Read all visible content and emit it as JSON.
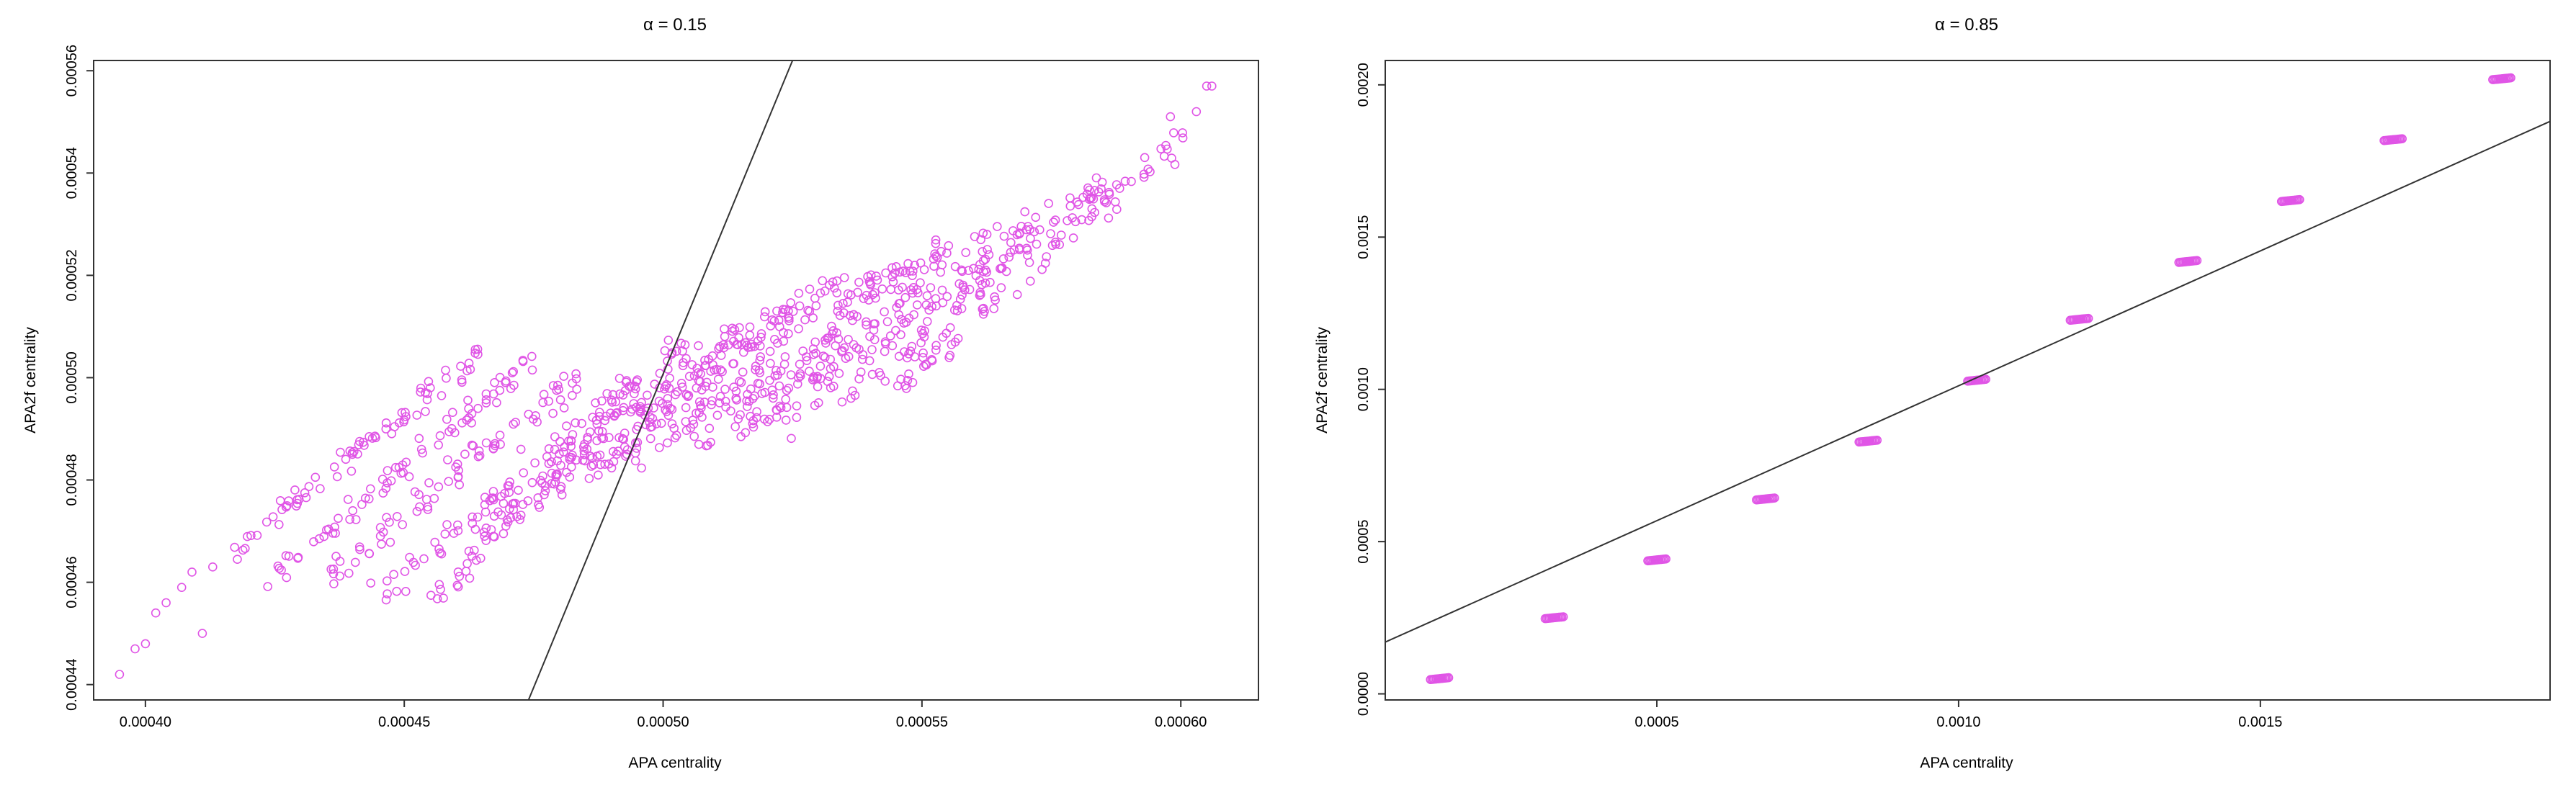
{
  "chart_data": [
    {
      "type": "scatter",
      "title": "α = 0.15",
      "xlabel": "APA centrality",
      "ylabel": "APA2f centrality",
      "xlim": [
        0.00039,
        0.000615
      ],
      "ylim": [
        0.000437,
        0.000562
      ],
      "xticks": [
        0.0004,
        0.00045,
        0.0005,
        0.00055,
        0.0006
      ],
      "xtick_labels": [
        "0.00040",
        "0.00045",
        "0.00050",
        "0.00055",
        "0.00060"
      ],
      "yticks": [
        0.00044,
        0.00046,
        0.00048,
        0.0005,
        0.00052,
        0.00054,
        0.00056
      ],
      "ytick_labels": [
        "0.00044",
        "0.00046",
        "0.00048",
        "0.00050",
        "0.00052",
        "0.00054",
        "0.00056"
      ],
      "reference_line": {
        "x": [
          0.000474,
          0.000525
        ],
        "y": [
          0.000437,
          0.000562
        ]
      },
      "point_color": "#e055e6",
      "marker": "open-circle",
      "point_bands": [
        {
          "x": [
            0.000415,
            0.000465
          ],
          "y": [
            0.000465,
            0.000505
          ]
        },
        {
          "x": [
            0.000425,
            0.000475
          ],
          "y": [
            0.000462,
            0.000503
          ]
        },
        {
          "x": [
            0.000435,
            0.000485
          ],
          "y": [
            0.00046,
            0.000501
          ]
        },
        {
          "x": [
            0.000445,
            0.000495
          ],
          "y": [
            0.000458,
            0.0005
          ]
        },
        {
          "x": [
            0.000455,
            0.000505
          ],
          "y": [
            0.000456,
            0.000508
          ]
        },
        {
          "x": [
            0.000465,
            0.000515
          ],
          "y": [
            0.00047,
            0.00051
          ]
        },
        {
          "x": [
            0.000475,
            0.000525
          ],
          "y": [
            0.000475,
            0.000515
          ]
        },
        {
          "x": [
            0.000485,
            0.000535
          ],
          "y": [
            0.00048,
            0.00052
          ]
        },
        {
          "x": [
            0.000495,
            0.000545
          ],
          "y": [
            0.000483,
            0.000522
          ]
        },
        {
          "x": [
            0.000505,
            0.000555
          ],
          "y": [
            0.000486,
            0.000526
          ]
        },
        {
          "x": [
            0.000515,
            0.000565
          ],
          "y": [
            0.000489,
            0.00053
          ]
        },
        {
          "x": [
            0.000525,
            0.000575
          ],
          "y": [
            0.000492,
            0.000534
          ]
        },
        {
          "x": [
            0.000535,
            0.000585
          ],
          "y": [
            0.000495,
            0.000538
          ]
        },
        {
          "x": [
            0.000545,
            0.0006
          ],
          "y": [
            0.000498,
            0.000547
          ]
        }
      ],
      "outlier_points": [
        {
          "x": 0.000395,
          "y": 0.000442
        },
        {
          "x": 0.000398,
          "y": 0.000447
        },
        {
          "x": 0.0004,
          "y": 0.000448
        },
        {
          "x": 0.000402,
          "y": 0.000454
        },
        {
          "x": 0.000404,
          "y": 0.000456
        },
        {
          "x": 0.000407,
          "y": 0.000459
        },
        {
          "x": 0.000409,
          "y": 0.000462
        },
        {
          "x": 0.000411,
          "y": 0.00045
        },
        {
          "x": 0.000413,
          "y": 0.000463
        },
        {
          "x": 0.000603,
          "y": 0.000552
        },
        {
          "x": 0.000605,
          "y": 0.000557
        },
        {
          "x": 0.000606,
          "y": 0.000557
        },
        {
          "x": 0.000598,
          "y": 0.000551
        }
      ]
    },
    {
      "type": "scatter",
      "title": "α = 0.85",
      "xlabel": "APA centrality",
      "ylabel": "APA2f centrality",
      "xlim": [
        5e-05,
        0.00198
      ],
      "ylim": [
        -2e-05,
        0.00208
      ],
      "xticks": [
        0.0005,
        0.001,
        0.0015
      ],
      "xtick_labels": [
        "0.0005",
        "0.0010",
        "0.0015"
      ],
      "yticks": [
        0.0,
        0.0005,
        0.001,
        0.0015,
        0.002
      ],
      "ytick_labels": [
        "0.0000",
        "0.0005",
        "0.0010",
        "0.0015",
        "0.0020"
      ],
      "reference_line": {
        "x": [
          5e-05,
          0.00198
        ],
        "y": [
          0.00017,
          0.00188
        ]
      },
      "point_color": "#e055e6",
      "marker": "open-circle",
      "clusters": [
        {
          "x": 0.00014,
          "y": 5e-05
        },
        {
          "x": 0.00033,
          "y": 0.00025
        },
        {
          "x": 0.0005,
          "y": 0.00044
        },
        {
          "x": 0.00068,
          "y": 0.00064
        },
        {
          "x": 0.00085,
          "y": 0.00083
        },
        {
          "x": 0.00103,
          "y": 0.00103
        },
        {
          "x": 0.0012,
          "y": 0.00123
        },
        {
          "x": 0.00138,
          "y": 0.00142
        },
        {
          "x": 0.00155,
          "y": 0.00162
        },
        {
          "x": 0.00172,
          "y": 0.00182
        },
        {
          "x": 0.0019,
          "y": 0.00202
        }
      ]
    }
  ]
}
